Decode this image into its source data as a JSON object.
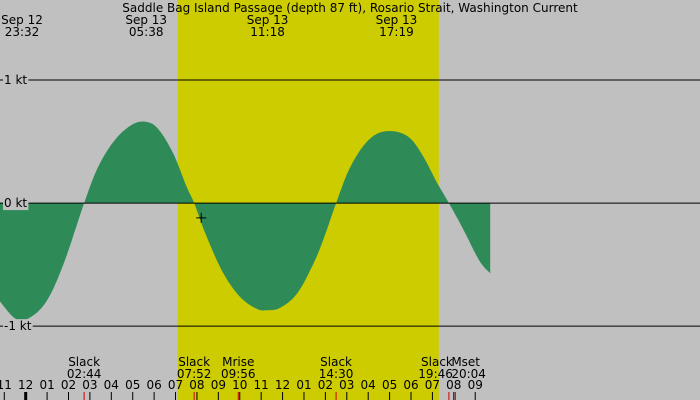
{
  "chart_data": {
    "type": "area",
    "title": "Saddle Bag Island Passage (depth 87 ft), Rosario Strait, Washington Current",
    "unit": "kt",
    "xlim": [
      22.8,
      55.5
    ],
    "ylim": [
      -1.6,
      1.65
    ],
    "y_ticks": [
      {
        "value": 1,
        "label": "1 kt"
      },
      {
        "value": 0,
        "label": "0 kt"
      },
      {
        "value": -1,
        "label": "-1 kt"
      }
    ],
    "daylight": [
      [
        31.1,
        43.3
      ]
    ],
    "colors": {
      "background": "#c0c0c0",
      "daylight": "#cccc00",
      "flood": "#0000ff",
      "ebb": "#2e8b57",
      "tick_red": "#cc0000",
      "grid": "#000000"
    },
    "top_labels": [
      {
        "x": 23.53,
        "date": "Sep 12",
        "time": "23:32"
      },
      {
        "x": 29.63,
        "date": "Sep 13",
        "time": "05:38"
      },
      {
        "x": 35.3,
        "date": "Sep 13",
        "time": "11:18"
      },
      {
        "x": 41.32,
        "date": "Sep 13",
        "time": "17:19"
      }
    ],
    "events": [
      {
        "x": 26.73,
        "name": "Slack",
        "time": "02:44",
        "kind": "slack"
      },
      {
        "x": 31.87,
        "name": "Slack",
        "time": "07:52",
        "kind": "slack"
      },
      {
        "x": 33.93,
        "name": "Mrise",
        "time": "09:56",
        "kind": "moon"
      },
      {
        "x": 38.5,
        "name": "Slack",
        "time": "14:30",
        "kind": "slack"
      },
      {
        "x": 43.77,
        "name": "Slack",
        "time": "19:46",
        "kind": "slack"
      },
      {
        "x": 44.07,
        "name": "Mset",
        "time": "20:04",
        "kind": "moon"
      }
    ],
    "current_curve": {
      "x": [
        22.8,
        23.53,
        24.2,
        25.0,
        25.8,
        26.73,
        27.4,
        28.2,
        29.0,
        29.63,
        30.2,
        30.9,
        31.5,
        31.87,
        32.4,
        33.2,
        34.0,
        34.8,
        35.3,
        35.9,
        36.7,
        37.5,
        38.0,
        38.5,
        39.1,
        39.8,
        40.5,
        41.32,
        42.0,
        42.6,
        43.2,
        43.77,
        44.4,
        45.2,
        45.7
      ],
      "y": [
        -0.8,
        -0.94,
        -0.93,
        -0.79,
        -0.48,
        0.0,
        0.3,
        0.52,
        0.64,
        0.66,
        0.6,
        0.4,
        0.14,
        0.0,
        -0.25,
        -0.56,
        -0.76,
        -0.86,
        -0.87,
        -0.85,
        -0.73,
        -0.47,
        -0.25,
        0.0,
        0.27,
        0.47,
        0.57,
        0.58,
        0.52,
        0.37,
        0.17,
        0.0,
        -0.2,
        -0.47,
        -0.57
      ]
    },
    "x_ticks": [
      "11",
      "12",
      "01",
      "02",
      "03",
      "04",
      "05",
      "06",
      "07",
      "08",
      "09",
      "10",
      "11",
      "12",
      "01",
      "02",
      "03",
      "04",
      "05",
      "06",
      "07",
      "08",
      "09"
    ],
    "x_tick_values": [
      23,
      24,
      25,
      26,
      27,
      28,
      29,
      30,
      31,
      32,
      33,
      34,
      35,
      36,
      37,
      38,
      39,
      40,
      41,
      42,
      43,
      44,
      45
    ],
    "midnight_x": 24,
    "cursor": {
      "x": 32.2,
      "y": -0.12
    }
  }
}
